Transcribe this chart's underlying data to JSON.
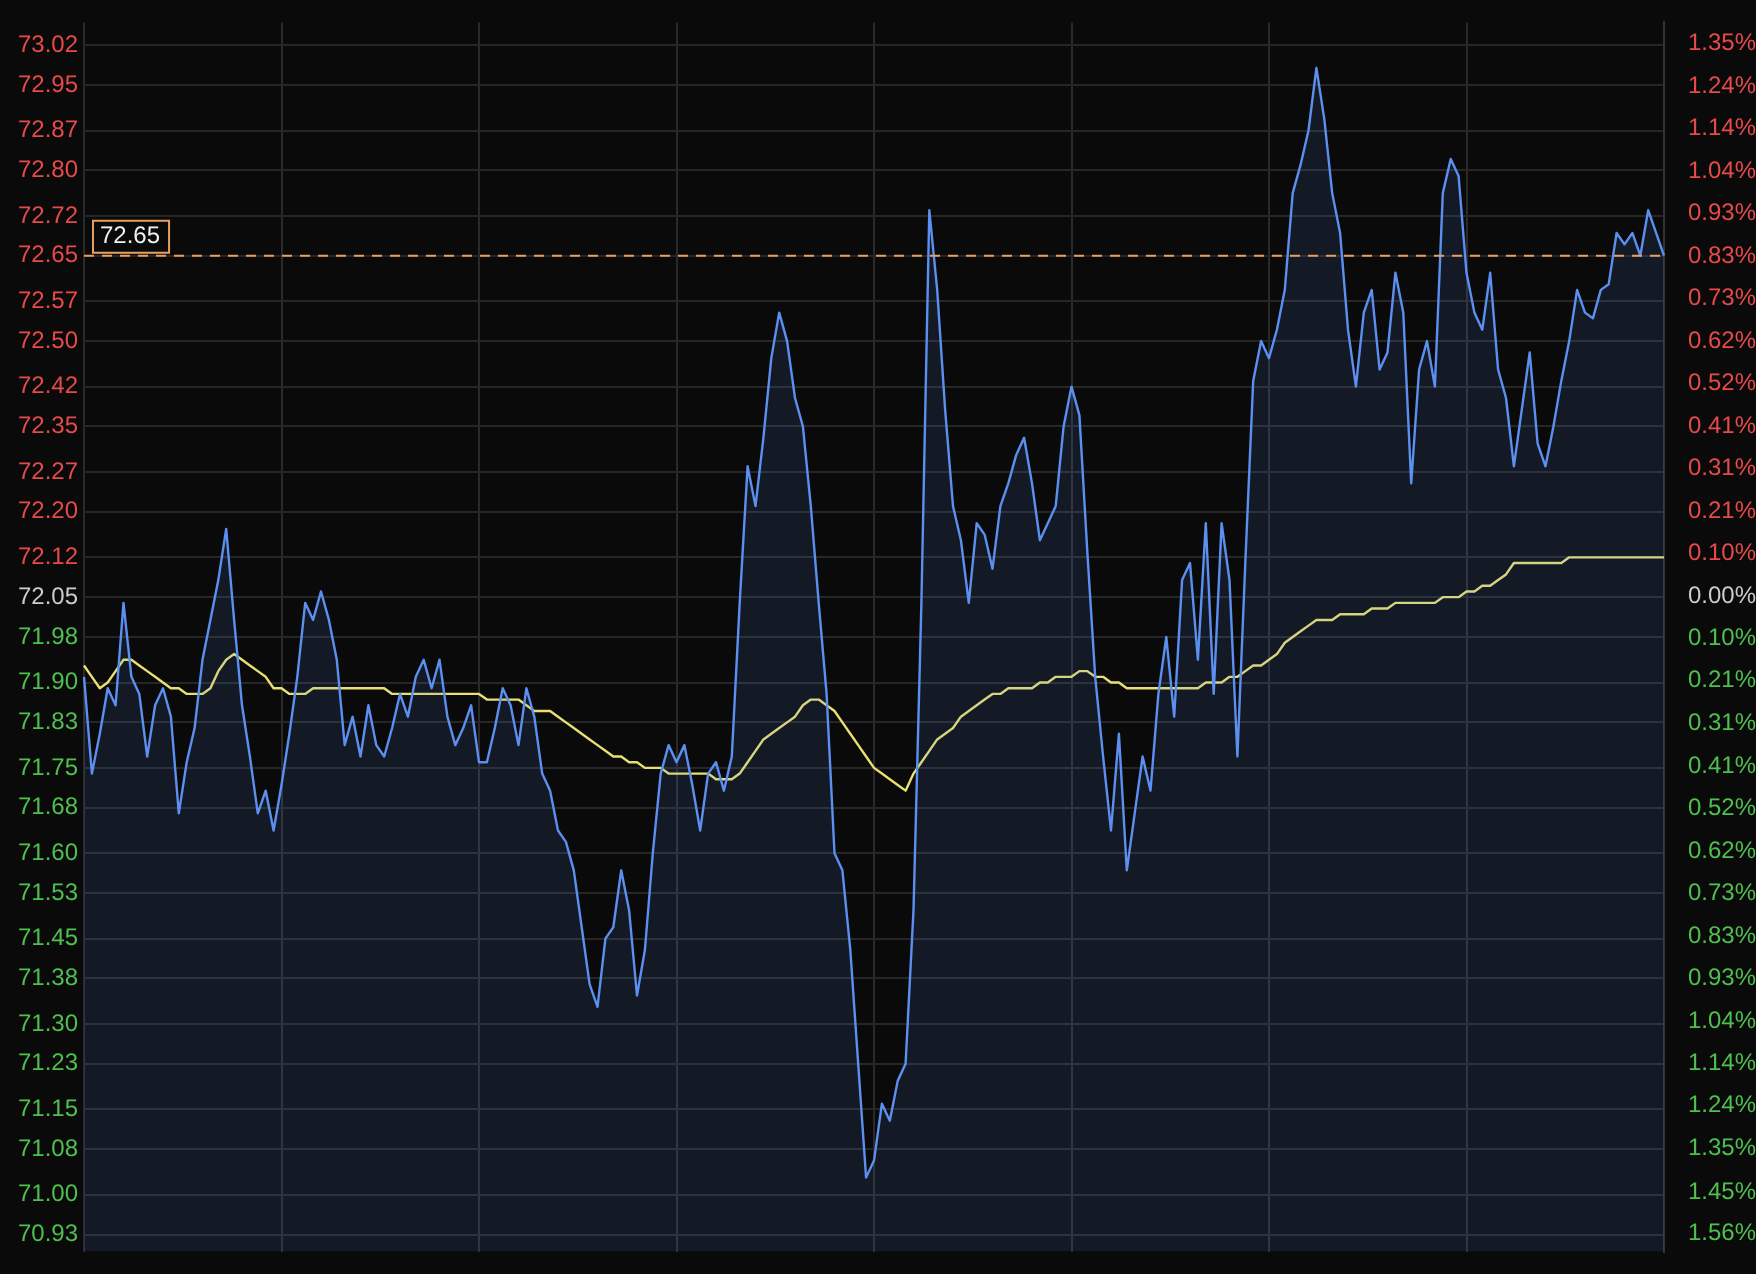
{
  "chart_data": {
    "type": "line",
    "categories": [
      null,
      null,
      null,
      null,
      null,
      null,
      null,
      null,
      null,
      null,
      null,
      null,
      null,
      null,
      null,
      null,
      null,
      null,
      null,
      null,
      null,
      null,
      null,
      null,
      null,
      null,
      null,
      null,
      null,
      null,
      null,
      null,
      null,
      null,
      null,
      null,
      null,
      null,
      null,
      null,
      null,
      null,
      null,
      null,
      null,
      null,
      null,
      null,
      null,
      null,
      null,
      null,
      null,
      null,
      null,
      null,
      null,
      null,
      null,
      null,
      null,
      null,
      null,
      null,
      null,
      null,
      null,
      null,
      null,
      null,
      null,
      null,
      null,
      null,
      null,
      null,
      null,
      null,
      null,
      null,
      null,
      null,
      null,
      null,
      null,
      null,
      null,
      null,
      null,
      null,
      null,
      null,
      null,
      null,
      null,
      null,
      null,
      null,
      null,
      null,
      null,
      null,
      null,
      null,
      null,
      null,
      null,
      null,
      null,
      null,
      null,
      null,
      null,
      null,
      null,
      null,
      null,
      null,
      null,
      null,
      null,
      null,
      null,
      null,
      null,
      null,
      null,
      null,
      null,
      null,
      null,
      null,
      null,
      null,
      null,
      null,
      null,
      null,
      null,
      null,
      null,
      null,
      null,
      null,
      null,
      null,
      null,
      null,
      null,
      null,
      null,
      null,
      null,
      null,
      null,
      null,
      null,
      null,
      null,
      null,
      null,
      null,
      null,
      null,
      null,
      null,
      null,
      null,
      null,
      null,
      null,
      null,
      null,
      null,
      null,
      null,
      null,
      null,
      null,
      null,
      null,
      null,
      null,
      null,
      null,
      null,
      null,
      null,
      null,
      null,
      null,
      null,
      null,
      null,
      null,
      null,
      null,
      null,
      null,
      null,
      null
    ],
    "series": [
      {
        "type": "area",
        "color": "#5b8ff0",
        "values": [
          71.91,
          71.74,
          71.81,
          71.89,
          71.86,
          72.04,
          71.91,
          71.88,
          71.77,
          71.86,
          71.89,
          71.84,
          71.67,
          71.76,
          71.82,
          71.94,
          72.01,
          72.08,
          72.17,
          72.01,
          71.86,
          71.77,
          71.67,
          71.71,
          71.64,
          71.72,
          71.81,
          71.91,
          72.04,
          72.01,
          72.06,
          72.01,
          71.94,
          71.79,
          71.84,
          71.77,
          71.86,
          71.79,
          71.77,
          71.82,
          71.88,
          71.84,
          71.91,
          71.94,
          71.89,
          71.94,
          71.84,
          71.79,
          71.82,
          71.86,
          71.76,
          71.76,
          71.82,
          71.89,
          71.86,
          71.79,
          71.89,
          71.84,
          71.74,
          71.71,
          71.64,
          71.62,
          71.57,
          71.47,
          71.37,
          71.33,
          71.45,
          71.47,
          71.57,
          71.5,
          71.35,
          71.43,
          71.6,
          71.74,
          71.79,
          71.76,
          71.79,
          71.72,
          71.64,
          71.74,
          71.76,
          71.71,
          71.77,
          72.04,
          72.28,
          72.21,
          72.33,
          72.47,
          72.55,
          72.5,
          72.4,
          72.35,
          72.21,
          72.04,
          71.88,
          71.6,
          71.57,
          71.43,
          71.23,
          71.03,
          71.06,
          71.16,
          71.13,
          71.2,
          71.23,
          71.5,
          72.04,
          72.73,
          72.59,
          72.38,
          72.21,
          72.15,
          72.04,
          72.18,
          72.16,
          72.1,
          72.21,
          72.25,
          72.3,
          72.33,
          72.25,
          72.15,
          72.18,
          72.21,
          72.35,
          72.42,
          72.37,
          72.13,
          71.91,
          71.77,
          71.64,
          71.81,
          71.57,
          71.67,
          71.77,
          71.71,
          71.88,
          71.98,
          71.84,
          72.08,
          72.11,
          71.94,
          72.18,
          71.88,
          72.18,
          72.08,
          71.77,
          72.11,
          72.43,
          72.5,
          72.47,
          72.52,
          72.59,
          72.76,
          72.81,
          72.87,
          72.98,
          72.89,
          72.76,
          72.69,
          72.52,
          72.42,
          72.55,
          72.59,
          72.45,
          72.48,
          72.62,
          72.55,
          72.25,
          72.45,
          72.5,
          72.42,
          72.76,
          72.82,
          72.79,
          72.62,
          72.55,
          72.52,
          72.62,
          72.45,
          72.4,
          72.28,
          72.38,
          72.48,
          72.32,
          72.28,
          72.35,
          72.43,
          72.5,
          72.59,
          72.55,
          72.54,
          72.59,
          72.6,
          72.69,
          72.67,
          72.69,
          72.65,
          72.73,
          72.69,
          72.65
        ]
      },
      {
        "type": "line",
        "color": "#e8e070",
        "values": [
          71.93,
          71.91,
          71.89,
          71.9,
          71.92,
          71.94,
          71.94,
          71.93,
          71.92,
          71.91,
          71.9,
          71.89,
          71.89,
          71.88,
          71.88,
          71.88,
          71.89,
          71.92,
          71.94,
          71.95,
          71.94,
          71.93,
          71.92,
          71.91,
          71.89,
          71.89,
          71.88,
          71.88,
          71.88,
          71.89,
          71.89,
          71.89,
          71.89,
          71.89,
          71.89,
          71.89,
          71.89,
          71.89,
          71.89,
          71.88,
          71.88,
          71.88,
          71.88,
          71.88,
          71.88,
          71.88,
          71.88,
          71.88,
          71.88,
          71.88,
          71.88,
          71.87,
          71.87,
          71.87,
          71.87,
          71.87,
          71.86,
          71.85,
          71.85,
          71.85,
          71.84,
          71.83,
          71.82,
          71.81,
          71.8,
          71.79,
          71.78,
          71.77,
          71.77,
          71.76,
          71.76,
          71.75,
          71.75,
          71.75,
          71.74,
          71.74,
          71.74,
          71.74,
          71.74,
          71.74,
          71.73,
          71.73,
          71.73,
          71.74,
          71.76,
          71.78,
          71.8,
          71.81,
          71.82,
          71.83,
          71.84,
          71.86,
          71.87,
          71.87,
          71.86,
          71.85,
          71.83,
          71.81,
          71.79,
          71.77,
          71.75,
          71.74,
          71.73,
          71.72,
          71.71,
          71.74,
          71.76,
          71.78,
          71.8,
          71.81,
          71.82,
          71.84,
          71.85,
          71.86,
          71.87,
          71.88,
          71.88,
          71.89,
          71.89,
          71.89,
          71.89,
          71.9,
          71.9,
          71.91,
          71.91,
          71.91,
          71.92,
          71.92,
          71.91,
          71.91,
          71.9,
          71.9,
          71.89,
          71.89,
          71.89,
          71.89,
          71.89,
          71.89,
          71.89,
          71.89,
          71.89,
          71.89,
          71.9,
          71.9,
          71.9,
          71.91,
          71.91,
          71.92,
          71.93,
          71.93,
          71.94,
          71.95,
          71.97,
          71.98,
          71.99,
          72.0,
          72.01,
          72.01,
          72.01,
          72.02,
          72.02,
          72.02,
          72.02,
          72.03,
          72.03,
          72.03,
          72.04,
          72.04,
          72.04,
          72.04,
          72.04,
          72.04,
          72.05,
          72.05,
          72.05,
          72.06,
          72.06,
          72.07,
          72.07,
          72.08,
          72.09,
          72.11,
          72.11,
          72.11,
          72.11,
          72.11,
          72.11,
          72.11,
          72.12,
          72.12,
          72.12,
          72.12,
          72.12,
          72.12,
          72.12,
          72.12,
          72.12,
          72.12,
          72.12,
          72.12,
          72.12
        ]
      }
    ],
    "ylim": [
      70.9,
      73.06
    ],
    "yticks": [
      73.02,
      72.95,
      72.87,
      {
        "value": 72.8,
        "label": "72.80"
      },
      72.72,
      72.65,
      72.57,
      {
        "value": 72.5,
        "label": "72.50"
      },
      72.42,
      72.35,
      72.27,
      {
        "value": 72.2,
        "label": "72.20"
      },
      72.12,
      72.05,
      71.98,
      {
        "value": 71.9,
        "label": "71.90"
      },
      71.83,
      71.75,
      71.68,
      {
        "value": 71.6,
        "label": "71.60"
      },
      71.53,
      71.45,
      71.38,
      {
        "value": 71.3,
        "label": "71.30"
      },
      71.23,
      71.15,
      71.08,
      {
        "value": 71,
        "label": "71.00"
      },
      70.93
    ],
    "y2lim": [
      -1.6,
      1.4
    ],
    "y2ticks": [
      {
        "value": 1.348,
        "label": "1.35%"
      },
      {
        "value": 1.244,
        "label": "1.24%"
      },
      {
        "value": 1.141,
        "label": "1.14%"
      },
      {
        "value": 1.037,
        "label": "1.04%"
      },
      {
        "value": 0.933,
        "label": "0.93%"
      },
      {
        "value": 0.83,
        "label": "0.83%"
      },
      {
        "value": 0.726,
        "label": "0.73%"
      },
      {
        "value": 0.622,
        "label": "0.62%"
      },
      {
        "value": 0.519,
        "label": "0.52%"
      },
      {
        "value": 0.415,
        "label": "0.41%"
      },
      {
        "value": 0.311,
        "label": "0.31%"
      },
      {
        "value": 0.207,
        "label": "0.21%"
      },
      {
        "value": 0.104,
        "label": "0.10%"
      },
      {
        "value": 0,
        "label": "0.00%"
      },
      {
        "value": -0.104,
        "label": "0.10%"
      },
      {
        "value": -0.207,
        "label": "0.21%"
      },
      {
        "value": -0.311,
        "label": "0.31%"
      },
      {
        "value": -0.415,
        "label": "0.41%"
      },
      {
        "value": -0.519,
        "label": "0.52%"
      },
      {
        "value": -0.622,
        "label": "0.62%"
      },
      {
        "value": -0.726,
        "label": "0.73%"
      },
      {
        "value": -0.83,
        "label": "0.83%"
      },
      {
        "value": -0.933,
        "label": "0.93%"
      },
      {
        "value": -1.037,
        "label": "1.04%"
      },
      {
        "value": -1.141,
        "label": "1.14%"
      },
      {
        "value": -1.244,
        "label": "1.24%"
      },
      {
        "value": -1.348,
        "label": "1.35%"
      },
      {
        "value": -1.455,
        "label": "1.45%"
      },
      {
        "value": -1.556,
        "label": "1.56%"
      }
    ],
    "ref_lines": [
      {
        "axis": "y",
        "value": 72.65,
        "label": "72.65",
        "color": "#e8a060",
        "line_style": "dashed"
      }
    ],
    "grid": true,
    "legend": false,
    "tick_labels": "y",
    "line_style": "solid",
    "marker": "none"
  }
}
